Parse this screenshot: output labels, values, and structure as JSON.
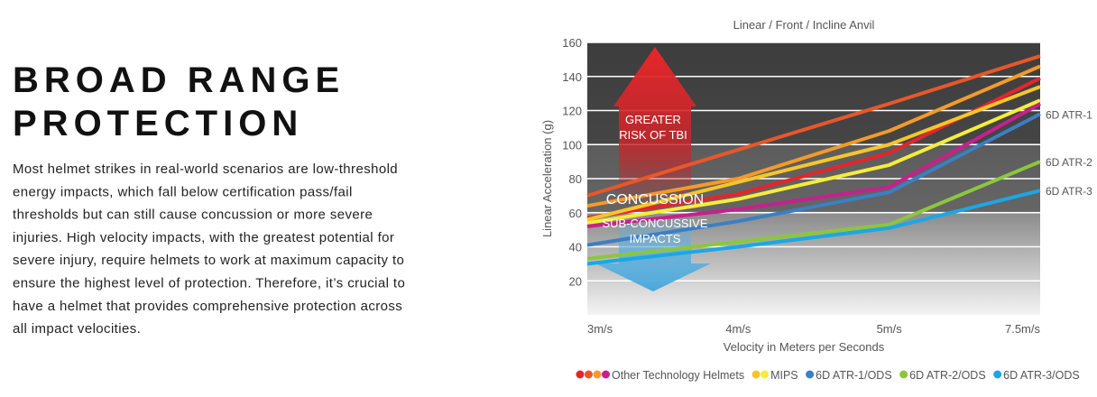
{
  "heading": [
    "BROAD RANGE",
    "PROTECTION"
  ],
  "body": [
    "Most helmet strikes in real-world scenarios are low-threshold",
    "energy impacts, which fall below certification pass/fail",
    "thresholds but can still cause concussion or more severe",
    "injuries. High velocity impacts, with the greatest potential for",
    "severe injury, require helmets to work at maximum capacity to",
    "ensure the highest level of protection. Therefore, it’s crucial to",
    "have a helmet that provides comprehensive protection across",
    "all impact velocities."
  ],
  "chart_data": {
    "type": "line",
    "title": "Linear / Front / Incline Anvil",
    "x_label": "Velocity in Meters per Seconds",
    "y_label": "Linear Acceleration (g)",
    "categories": [
      "3m/s",
      "4m/s",
      "5m/s",
      "7.5m/s"
    ],
    "ylim": [
      0,
      160
    ],
    "yticks": [
      20,
      40,
      60,
      80,
      100,
      120,
      140,
      160
    ],
    "grid": true,
    "annotations": [
      "GREATER",
      "RISK OF TBI",
      "CONCUSSION",
      "SUB-CONCUSSIVE",
      "IMPACTS"
    ],
    "series": [
      {
        "color": "#e8572a",
        "values": [
          70,
          97,
          124,
          152
        ]
      },
      {
        "color": "#f39a2a",
        "values": [
          64,
          80,
          108,
          146
        ]
      },
      {
        "color": "#e4252b",
        "values": [
          57,
          71,
          95,
          139
        ]
      },
      {
        "color": "#f7c52a",
        "values": [
          56,
          78,
          100,
          134
        ]
      },
      {
        "color": "#f5ec3c",
        "values": [
          54,
          68,
          88,
          126
        ]
      },
      {
        "color": "#c7208e",
        "values": [
          52,
          62,
          75,
          124
        ]
      },
      {
        "name": "6D ATR-1",
        "color": "#3b7fc4",
        "values": [
          41,
          55,
          72,
          118
        ]
      },
      {
        "name": "6D ATR-2",
        "color": "#8cc63f",
        "values": [
          33,
          43,
          53,
          90
        ]
      },
      {
        "name": "6D ATR-3",
        "color": "#1ba7e6",
        "values": [
          30,
          40,
          51,
          73
        ]
      }
    ],
    "legend": [
      {
        "label": "Other Technology Helmets",
        "colors": [
          "#e4252b",
          "#e8572a",
          "#f39a2a",
          "#c7208e"
        ]
      },
      {
        "label": "MIPS",
        "colors": [
          "#f7c52a",
          "#f5ec3c"
        ]
      },
      {
        "label": "6D ATR-1/ODS",
        "colors": [
          "#3b7fc4"
        ]
      },
      {
        "label": "6D ATR-2/ODS",
        "colors": [
          "#8cc63f"
        ]
      },
      {
        "label": "6D ATR-3/ODS",
        "colors": [
          "#1ba7e6"
        ]
      }
    ]
  }
}
